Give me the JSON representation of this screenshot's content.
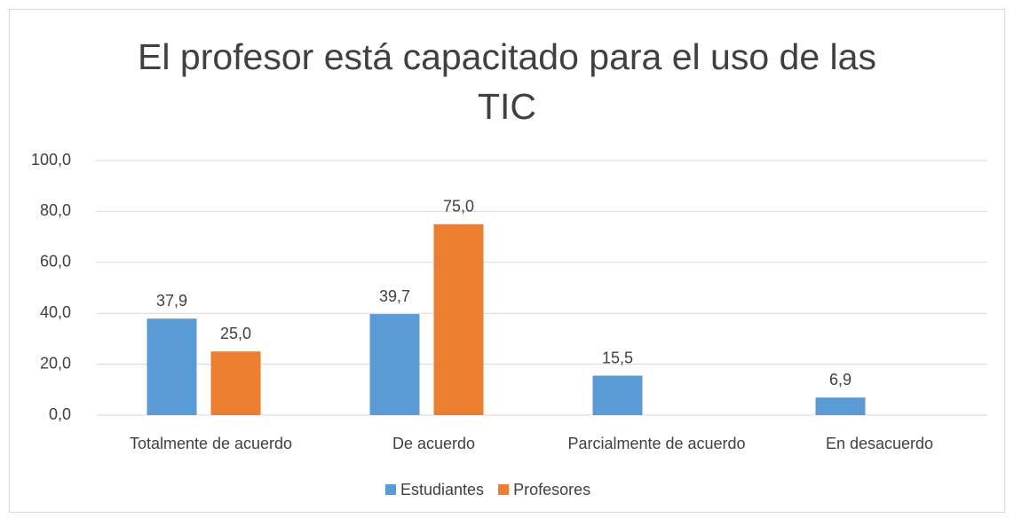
{
  "chart_data": {
    "type": "bar",
    "title": "El profesor está capacitado para el uso de las TIC",
    "categories": [
      "Totalmente de acuerdo",
      "De acuerdo",
      "Parcialmente de acuerdo",
      "En desacuerdo"
    ],
    "series": [
      {
        "name": "Estudiantes",
        "color": "#5b9bd5",
        "values": [
          37.9,
          39.7,
          15.5,
          6.9
        ],
        "value_labels": [
          "37,9",
          "39,7",
          "15,5",
          "6,9"
        ]
      },
      {
        "name": "Profesores",
        "color": "#ed7d31",
        "values": [
          25.0,
          75.0,
          null,
          null
        ],
        "value_labels": [
          "25,0",
          "75,0",
          null,
          null
        ]
      }
    ],
    "ylim": [
      0,
      100
    ],
    "yticks": [
      {
        "value": 0,
        "label": "0,0"
      },
      {
        "value": 20,
        "label": "20,0"
      },
      {
        "value": 40,
        "label": "40,0"
      },
      {
        "value": 60,
        "label": "60,0"
      },
      {
        "value": 80,
        "label": "80,0"
      },
      {
        "value": 100,
        "label": "100,0"
      }
    ],
    "grid": true,
    "legend": "bottom"
  }
}
